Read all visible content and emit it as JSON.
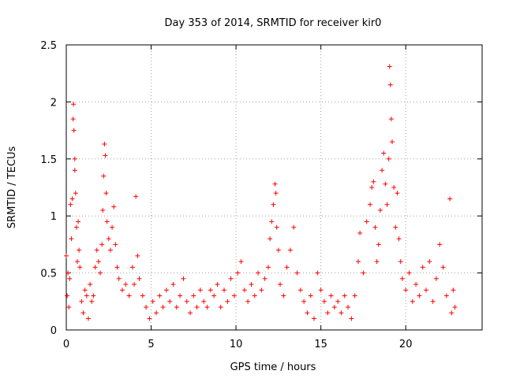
{
  "chart_data": {
    "type": "scatter",
    "title": "Day 353 of 2014, SRMTID for receiver kir0",
    "xlabel": "GPS time / hours",
    "ylabel": "SRMTID / TECUs",
    "xlim": [
      0,
      24.5
    ],
    "ylim": [
      0,
      2.5
    ],
    "grid": true,
    "marker": "+",
    "series_color": "#ff0000",
    "x_ticks": [
      0,
      5,
      10,
      15,
      20
    ],
    "x_tick_labels": [
      "0",
      "5",
      "10",
      "15",
      "20"
    ],
    "y_ticks": [
      0,
      0.5,
      1,
      1.5,
      2,
      2.5
    ],
    "y_tick_labels": [
      "0",
      "0.5",
      "1",
      "1.5",
      "2",
      "2.5"
    ],
    "series": [
      {
        "name": "SRMTID",
        "points": [
          [
            0.0,
            0.65
          ],
          [
            0.05,
            0.3
          ],
          [
            0.1,
            0.5
          ],
          [
            0.15,
            0.2
          ],
          [
            0.2,
            0.45
          ],
          [
            0.25,
            1.1
          ],
          [
            0.3,
            0.8
          ],
          [
            0.35,
            1.15
          ],
          [
            0.4,
            1.85
          ],
          [
            0.42,
            1.98
          ],
          [
            0.45,
            1.75
          ],
          [
            0.5,
            1.5
          ],
          [
            0.5,
            1.4
          ],
          [
            0.55,
            1.2
          ],
          [
            0.6,
            0.9
          ],
          [
            0.65,
            0.6
          ],
          [
            0.7,
            0.95
          ],
          [
            0.75,
            0.7
          ],
          [
            0.8,
            0.55
          ],
          [
            0.9,
            0.25
          ],
          [
            1.0,
            0.15
          ],
          [
            1.1,
            0.35
          ],
          [
            1.2,
            0.3
          ],
          [
            1.3,
            0.1
          ],
          [
            1.4,
            0.4
          ],
          [
            1.5,
            0.25
          ],
          [
            1.6,
            0.3
          ],
          [
            1.7,
            0.55
          ],
          [
            1.8,
            0.7
          ],
          [
            1.9,
            0.6
          ],
          [
            2.0,
            0.5
          ],
          [
            2.1,
            0.75
          ],
          [
            2.15,
            1.05
          ],
          [
            2.2,
            1.35
          ],
          [
            2.25,
            1.63
          ],
          [
            2.3,
            1.53
          ],
          [
            2.35,
            1.2
          ],
          [
            2.4,
            0.95
          ],
          [
            2.5,
            0.8
          ],
          [
            2.6,
            0.7
          ],
          [
            2.7,
            0.9
          ],
          [
            2.8,
            1.08
          ],
          [
            2.9,
            0.75
          ],
          [
            3.0,
            0.55
          ],
          [
            3.1,
            0.45
          ],
          [
            3.3,
            0.35
          ],
          [
            3.5,
            0.4
          ],
          [
            3.7,
            0.3
          ],
          [
            3.9,
            0.55
          ],
          [
            4.0,
            0.4
          ],
          [
            4.1,
            1.17
          ],
          [
            4.2,
            0.65
          ],
          [
            4.3,
            0.45
          ],
          [
            4.5,
            0.3
          ],
          [
            4.7,
            0.2
          ],
          [
            4.9,
            0.1
          ],
          [
            5.1,
            0.25
          ],
          [
            5.3,
            0.15
          ],
          [
            5.5,
            0.3
          ],
          [
            5.7,
            0.2
          ],
          [
            5.9,
            0.35
          ],
          [
            6.1,
            0.25
          ],
          [
            6.3,
            0.4
          ],
          [
            6.5,
            0.2
          ],
          [
            6.7,
            0.3
          ],
          [
            6.9,
            0.45
          ],
          [
            7.1,
            0.25
          ],
          [
            7.3,
            0.15
          ],
          [
            7.5,
            0.3
          ],
          [
            7.7,
            0.2
          ],
          [
            7.9,
            0.35
          ],
          [
            8.1,
            0.25
          ],
          [
            8.3,
            0.2
          ],
          [
            8.5,
            0.35
          ],
          [
            8.7,
            0.3
          ],
          [
            8.9,
            0.4
          ],
          [
            9.1,
            0.2
          ],
          [
            9.3,
            0.35
          ],
          [
            9.5,
            0.25
          ],
          [
            9.7,
            0.45
          ],
          [
            9.9,
            0.3
          ],
          [
            10.1,
            0.5
          ],
          [
            10.3,
            0.6
          ],
          [
            10.5,
            0.35
          ],
          [
            10.7,
            0.25
          ],
          [
            10.9,
            0.4
          ],
          [
            11.1,
            0.3
          ],
          [
            11.3,
            0.5
          ],
          [
            11.5,
            0.35
          ],
          [
            11.7,
            0.45
          ],
          [
            11.9,
            0.55
          ],
          [
            12.0,
            0.8
          ],
          [
            12.1,
            0.95
          ],
          [
            12.2,
            1.1
          ],
          [
            12.3,
            1.28
          ],
          [
            12.35,
            1.2
          ],
          [
            12.4,
            0.9
          ],
          [
            12.5,
            0.7
          ],
          [
            12.6,
            0.4
          ],
          [
            12.8,
            0.3
          ],
          [
            13.0,
            0.55
          ],
          [
            13.2,
            0.7
          ],
          [
            13.4,
            0.9
          ],
          [
            13.6,
            0.5
          ],
          [
            13.8,
            0.35
          ],
          [
            14.0,
            0.25
          ],
          [
            14.2,
            0.15
          ],
          [
            14.4,
            0.3
          ],
          [
            14.6,
            0.1
          ],
          [
            14.8,
            0.5
          ],
          [
            15.0,
            0.35
          ],
          [
            15.2,
            0.25
          ],
          [
            15.4,
            0.15
          ],
          [
            15.6,
            0.3
          ],
          [
            15.8,
            0.2
          ],
          [
            16.0,
            0.25
          ],
          [
            16.2,
            0.15
          ],
          [
            16.4,
            0.3
          ],
          [
            16.6,
            0.2
          ],
          [
            16.8,
            0.1
          ],
          [
            17.0,
            0.3
          ],
          [
            17.2,
            0.6
          ],
          [
            17.3,
            0.85
          ],
          [
            17.5,
            0.5
          ],
          [
            17.7,
            0.95
          ],
          [
            17.9,
            1.1
          ],
          [
            18.0,
            1.25
          ],
          [
            18.1,
            1.3
          ],
          [
            18.2,
            0.9
          ],
          [
            18.3,
            0.6
          ],
          [
            18.4,
            0.75
          ],
          [
            18.5,
            1.05
          ],
          [
            18.6,
            1.4
          ],
          [
            18.7,
            1.55
          ],
          [
            18.8,
            1.28
          ],
          [
            18.9,
            1.1
          ],
          [
            19.0,
            1.5
          ],
          [
            19.05,
            2.31
          ],
          [
            19.1,
            2.15
          ],
          [
            19.15,
            1.85
          ],
          [
            19.2,
            1.65
          ],
          [
            19.3,
            1.25
          ],
          [
            19.4,
            0.9
          ],
          [
            19.5,
            1.2
          ],
          [
            19.6,
            0.8
          ],
          [
            19.7,
            0.6
          ],
          [
            19.8,
            0.45
          ],
          [
            20.0,
            0.35
          ],
          [
            20.2,
            0.5
          ],
          [
            20.4,
            0.25
          ],
          [
            20.6,
            0.4
          ],
          [
            20.8,
            0.3
          ],
          [
            21.0,
            0.55
          ],
          [
            21.2,
            0.35
          ],
          [
            21.4,
            0.6
          ],
          [
            21.6,
            0.25
          ],
          [
            21.8,
            0.45
          ],
          [
            22.0,
            0.75
          ],
          [
            22.2,
            0.55
          ],
          [
            22.4,
            0.3
          ],
          [
            22.6,
            1.15
          ],
          [
            22.7,
            0.15
          ],
          [
            22.8,
            0.35
          ],
          [
            22.9,
            0.2
          ]
        ]
      }
    ]
  }
}
